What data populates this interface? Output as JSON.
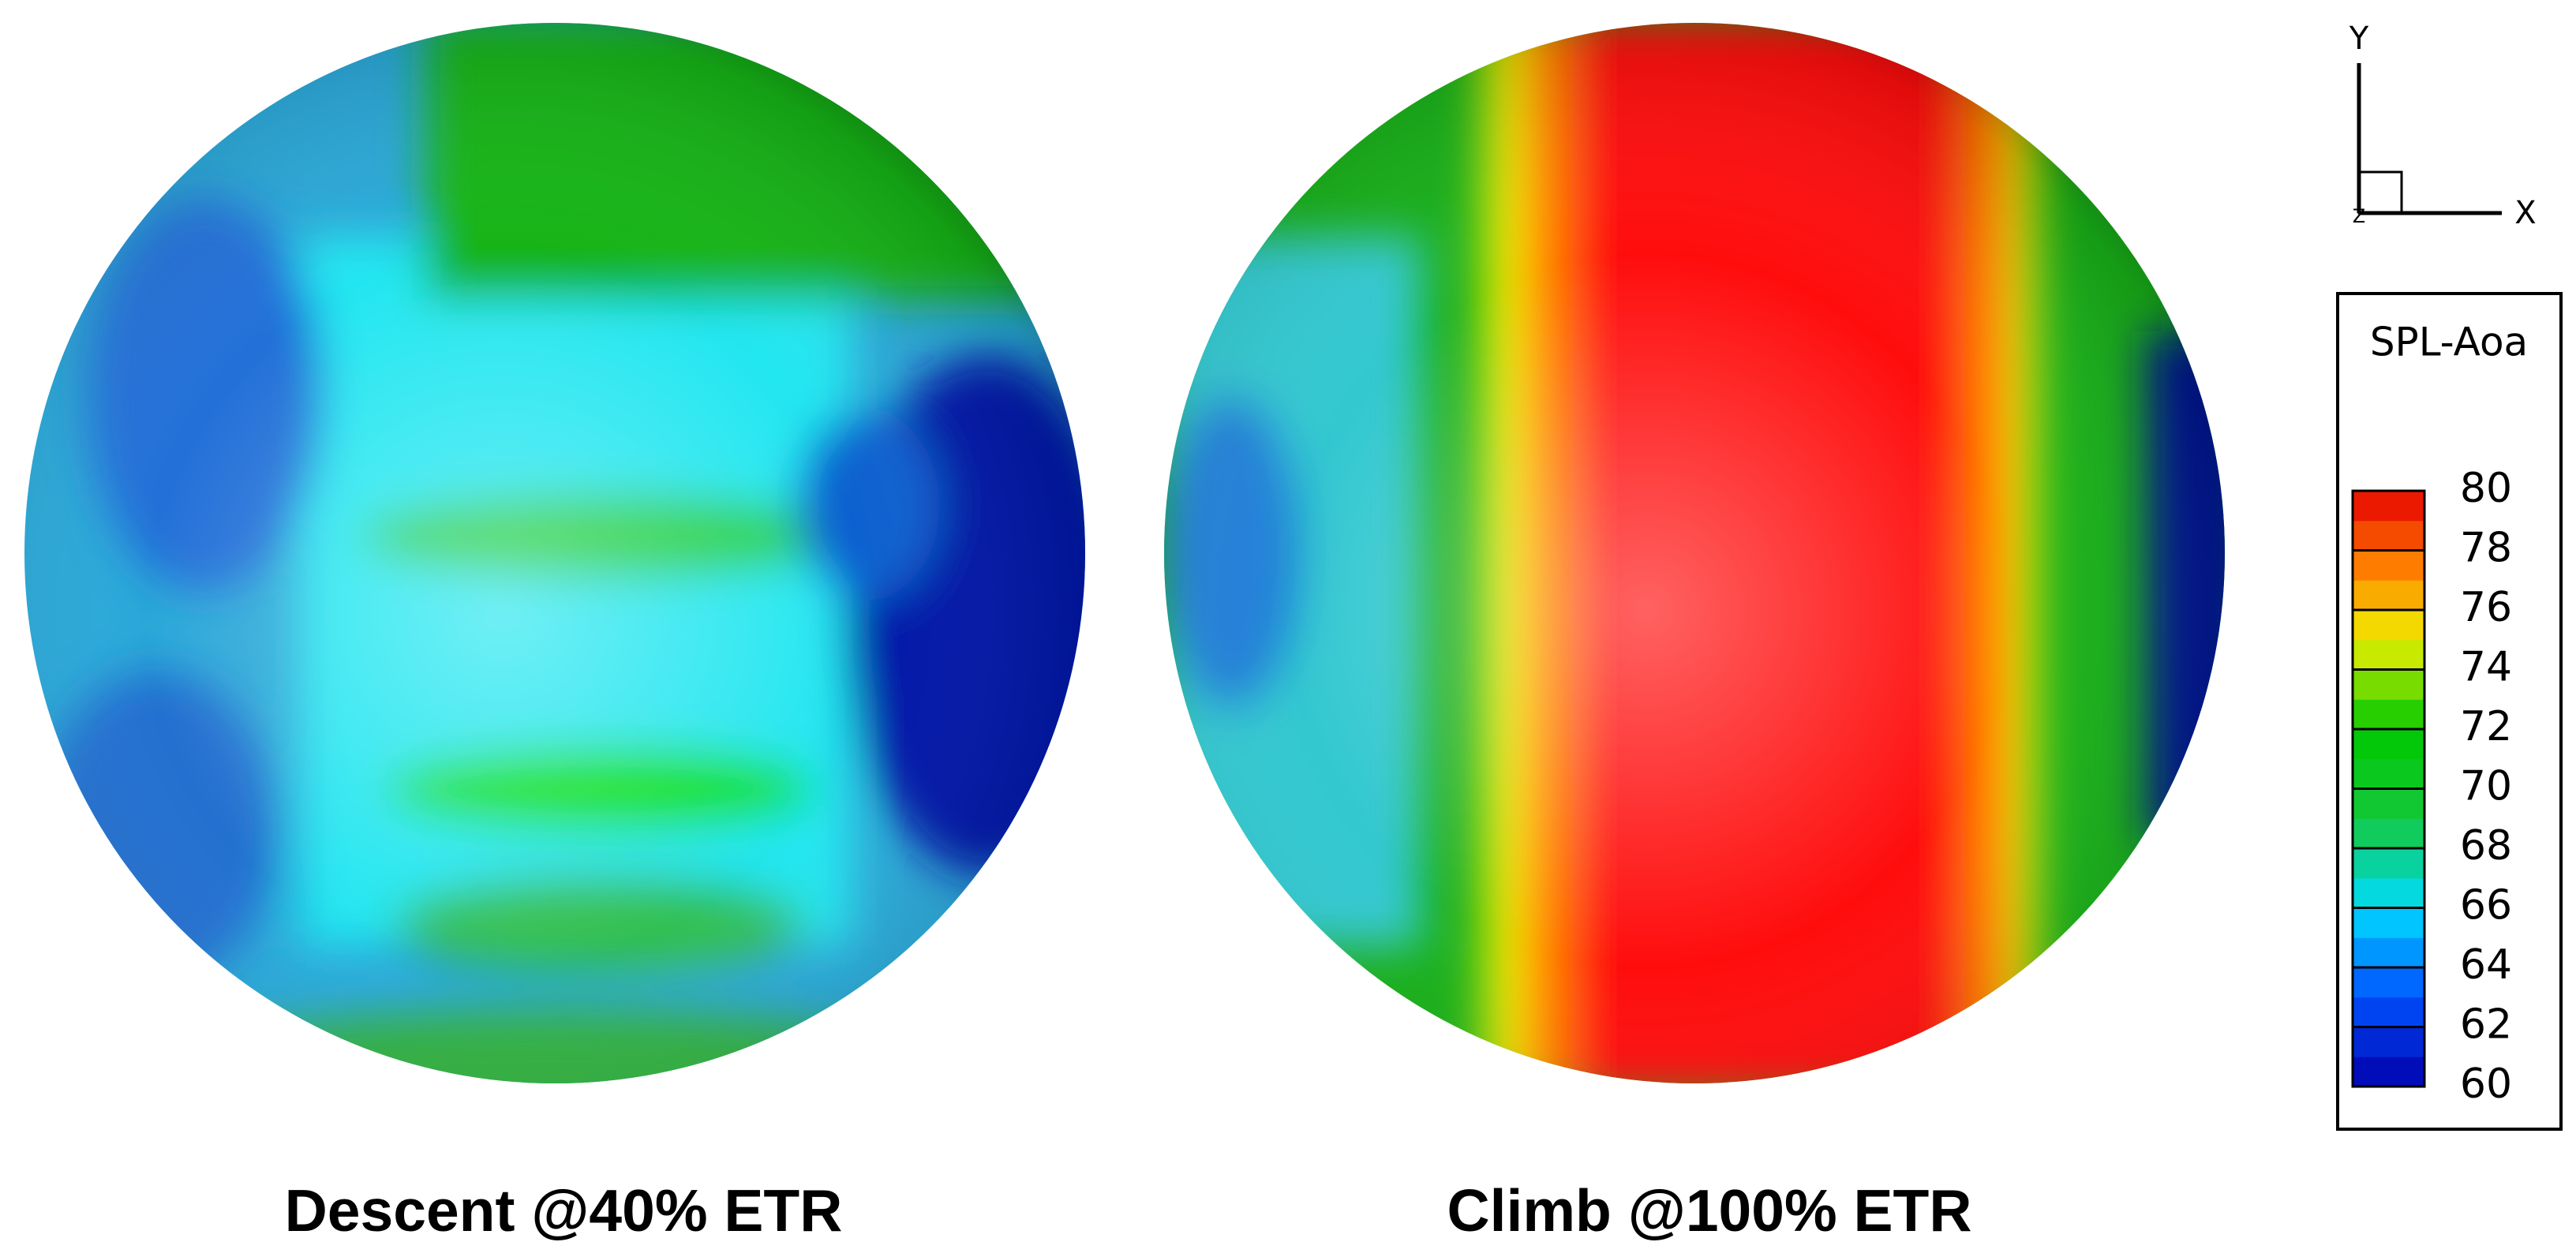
{
  "chart_data": {
    "type": "sphere-contour",
    "panels": [
      {
        "title": "Descent @40% ETR"
      },
      {
        "title": "Climb @100% ETR"
      }
    ],
    "colorbar": {
      "title": "SPL-Aoa",
      "lim": [
        60,
        80
      ],
      "ticks": [
        60,
        62,
        64,
        66,
        68,
        70,
        72,
        74,
        76,
        78,
        80
      ]
    },
    "axes": {
      "x": "X",
      "y": "Y",
      "z": "Z"
    }
  }
}
